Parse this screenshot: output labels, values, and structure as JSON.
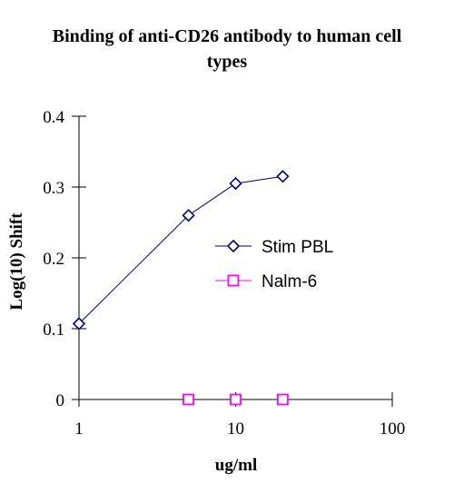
{
  "chart_data": {
    "type": "line",
    "title": [
      "Binding of anti-CD26 antibody to human cell",
      "types"
    ],
    "xlabel": "ug/ml",
    "ylabel": "Log(10) Shift",
    "xscale": "log",
    "xlim": [
      1,
      100
    ],
    "ylim": [
      0,
      0.4
    ],
    "xticks": [
      1,
      10,
      100
    ],
    "xtick_labels": [
      "1",
      "10",
      "100"
    ],
    "yticks": [
      0,
      0.1,
      0.2,
      0.3,
      0.4
    ],
    "ytick_labels": [
      "0",
      "0.1",
      "0.2",
      "0.3",
      "0.4"
    ],
    "grid": false,
    "legend_position": "right",
    "series": [
      {
        "name": "Stim PBL",
        "color": "#000080",
        "marker": "diamond",
        "line": true,
        "points": [
          {
            "x": 1,
            "y": 0.107
          },
          {
            "x": 5,
            "y": 0.26
          },
          {
            "x": 10,
            "y": 0.305
          },
          {
            "x": 20,
            "y": 0.315
          }
        ]
      },
      {
        "name": "Nalm-6",
        "color": "#ff00ff",
        "marker": "square",
        "line": false,
        "points": [
          {
            "x": 5,
            "y": 0
          },
          {
            "x": 10,
            "y": 0
          },
          {
            "x": 20,
            "y": 0
          }
        ]
      }
    ]
  }
}
